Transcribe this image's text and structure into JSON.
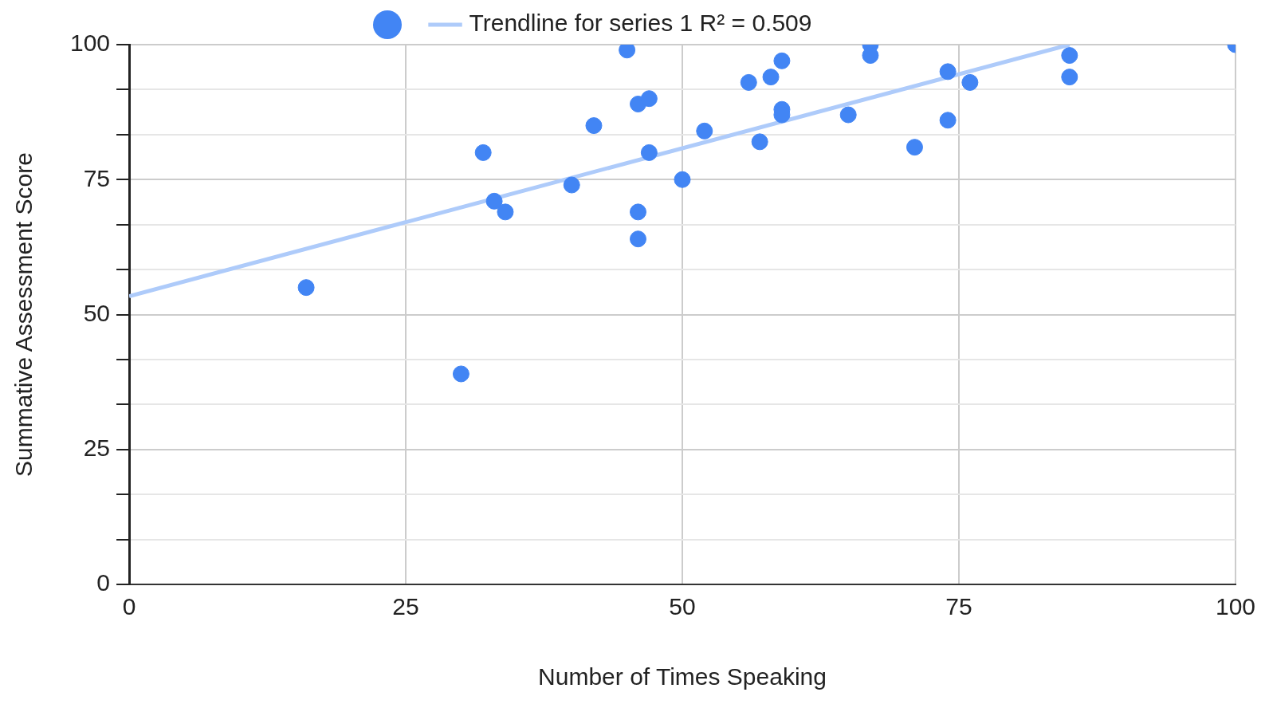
{
  "chart_data": {
    "type": "scatter",
    "xlabel": "Number of Times Speaking",
    "ylabel": "Summative Assessment Score",
    "xlim": [
      0,
      100
    ],
    "ylim": [
      0,
      100
    ],
    "xticks": [
      0,
      25,
      50,
      75,
      100
    ],
    "yticks": [
      0,
      {
        "value": 8.33,
        "label": null
      },
      {
        "value": 16.67,
        "label": null
      },
      25,
      {
        "value": 33.33,
        "label": null
      },
      {
        "value": 41.67,
        "label": null
      },
      50,
      {
        "value": 58.33,
        "label": null
      },
      {
        "value": 66.67,
        "label": null
      },
      75,
      {
        "value": 83.33,
        "label": null
      },
      {
        "value": 91.67,
        "label": null
      },
      100
    ],
    "grid": true,
    "legend": "top",
    "series": [
      {
        "marker": "circle",
        "color": "#4285f4",
        "x": [
          16,
          30,
          32,
          33,
          34,
          40,
          42,
          45,
          46,
          47,
          47,
          46,
          46,
          50,
          52,
          56,
          57,
          58,
          59,
          59,
          59,
          65,
          67,
          67,
          71,
          74,
          74,
          76,
          85,
          85,
          100
        ],
        "values": [
          55,
          39,
          80,
          71,
          69,
          74,
          85,
          99,
          89,
          90,
          80,
          69,
          64,
          75,
          84,
          93,
          82,
          94,
          97,
          88,
          87,
          87,
          100,
          98,
          81,
          95,
          86,
          93,
          98,
          94,
          100
        ]
      },
      {
        "type": "line",
        "name": "Trendline for series 1 R² = 0.509",
        "color": "#aecbfa",
        "x": [
          0,
          85
        ],
        "values": [
          53.4,
          100
        ]
      }
    ]
  }
}
